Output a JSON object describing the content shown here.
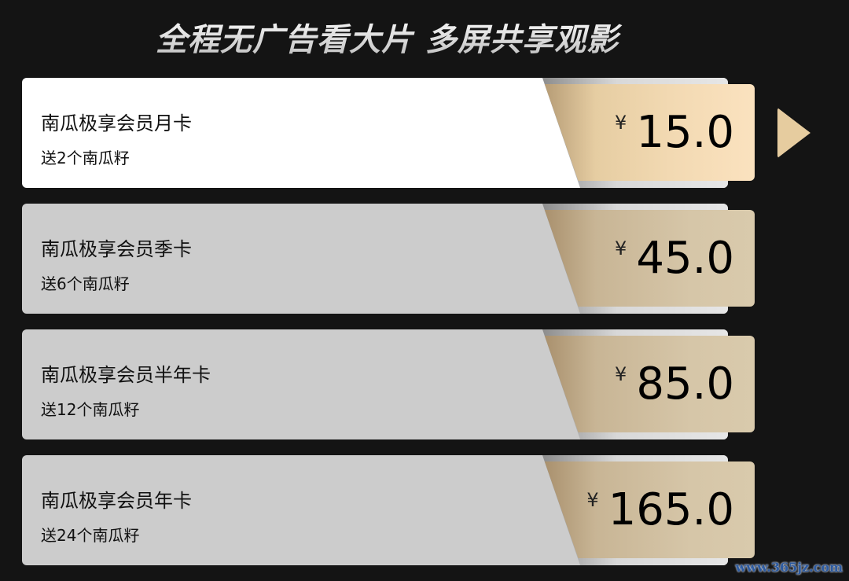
{
  "header": {
    "title": "全程无广告看大片 多屏共享观影"
  },
  "plans": [
    {
      "name": "南瓜极享会员月卡",
      "gift": "送2个南瓜籽",
      "currency": "¥",
      "price": "15.0",
      "selected": true
    },
    {
      "name": "南瓜极享会员季卡",
      "gift": "送6个南瓜籽",
      "currency": "¥",
      "price": "45.0",
      "selected": false
    },
    {
      "name": "南瓜极享会员半年卡",
      "gift": "送12个南瓜籽",
      "currency": "¥",
      "price": "85.0",
      "selected": false
    },
    {
      "name": "南瓜极享会员年卡",
      "gift": "送24个南瓜籽",
      "currency": "¥",
      "price": "165.0",
      "selected": false
    }
  ],
  "selection_indicator": {
    "icon": "triangle-right-icon",
    "color": "#e6cc9f"
  },
  "watermark": "www.365jz.com"
}
